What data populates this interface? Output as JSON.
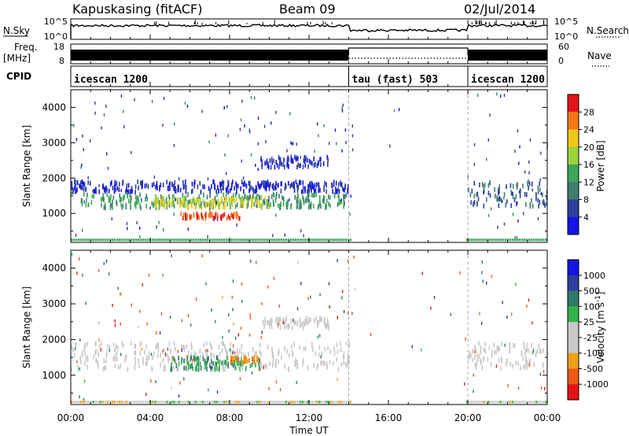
{
  "header": {
    "station": "Kapuskasing (fitACF)",
    "beam": "Beam 09",
    "date": "02/Jul/2014"
  },
  "status_panels": {
    "nsky_label": "N.Sky",
    "nsky_ticks": [
      "10^5",
      "10^0"
    ],
    "nsearch_label": "N.Search",
    "nsearch_ticks": [
      "10^5",
      "10^0"
    ],
    "freq_label": "Freq.",
    "freq_unit": "[MHz]",
    "freq_ticks": [
      "18",
      "8"
    ],
    "nave_label": "Nave",
    "nave_ticks": [
      "60",
      "0"
    ],
    "cpid_label": "CPID",
    "cpid_segments": [
      {
        "name": "icescan 1200",
        "start_hour": 0,
        "end_hour": 14
      },
      {
        "name": "tau (fast) 503",
        "start_hour": 14,
        "end_hour": 20
      },
      {
        "name": "icescan 1200",
        "start_hour": 20,
        "end_hour": 24
      }
    ]
  },
  "x_axis": {
    "label": "Time UT",
    "ticks": [
      "00:00",
      "04:00",
      "08:00",
      "12:00",
      "16:00",
      "20:00",
      "00:00"
    ]
  },
  "colors": {
    "power_scale": [
      "#1414e6",
      "#2c3f9c",
      "#3f7f6f",
      "#3fa65a",
      "#9cd23c",
      "#f0c814",
      "#f57814",
      "#e61414"
    ],
    "velocity_scale": [
      "#1414e6",
      "#2c3f9c",
      "#2f7a6a",
      "#33b44a",
      "#c8c8c8",
      "#c8c8c8",
      "#f0a014",
      "#f05a14",
      "#e61414"
    ]
  },
  "chart_data": [
    {
      "type": "heatmap",
      "panel": "power",
      "ylabel": "Slant Range [km]",
      "ylim": [
        180,
        4500
      ],
      "xlim": [
        0,
        24
      ],
      "yticks": [
        "1000",
        "2000",
        "3000",
        "4000"
      ],
      "colorbar_label": "Power [dB]",
      "colorbar_ticks": [
        "4",
        "8",
        "12",
        "16",
        "20",
        "24",
        "28"
      ],
      "regions": [
        {
          "t": [
            0,
            14
          ],
          "range_km": [
            1600,
            1900
          ],
          "value_db": 4
        },
        {
          "t": [
            0.5,
            14
          ],
          "range_km": [
            1150,
            1550
          ],
          "value_db": 12
        },
        {
          "t": [
            4,
            10
          ],
          "range_km": [
            1150,
            1450
          ],
          "value_db": 20
        },
        {
          "t": [
            5.5,
            8.5
          ],
          "range_km": [
            850,
            1000
          ],
          "value_db": 28
        },
        {
          "t": [
            9.5,
            13
          ],
          "range_km": [
            2300,
            2600
          ],
          "value_db": 4
        },
        {
          "t": [
            20,
            24
          ],
          "range_km": [
            1200,
            1900
          ],
          "value_db": 8
        }
      ]
    },
    {
      "type": "heatmap",
      "panel": "velocity",
      "ylabel": "Slant Range [km]",
      "ylim": [
        180,
        4500
      ],
      "xlim": [
        0,
        24
      ],
      "yticks": [
        "1000",
        "2000",
        "3000",
        "4000"
      ],
      "colorbar_label": "Velocity [m s^-1]",
      "colorbar_ticks": [
        "1000",
        "500",
        "100",
        "25",
        "-25",
        "-100",
        "-500",
        "-1000"
      ],
      "regions": [
        {
          "t": [
            0,
            14
          ],
          "range_km": [
            1150,
            1900
          ],
          "value_ms": 0
        },
        {
          "t": [
            5,
            9.5
          ],
          "range_km": [
            1150,
            1500
          ],
          "value_ms": 100
        },
        {
          "t": [
            8,
            9.5
          ],
          "range_km": [
            1350,
            1500
          ],
          "value_ms": -100
        },
        {
          "t": [
            9.5,
            13
          ],
          "range_km": [
            2300,
            2600
          ],
          "value_ms": 0
        },
        {
          "t": [
            20,
            24
          ],
          "range_km": [
            1200,
            1900
          ],
          "value_ms": 0
        }
      ]
    }
  ]
}
